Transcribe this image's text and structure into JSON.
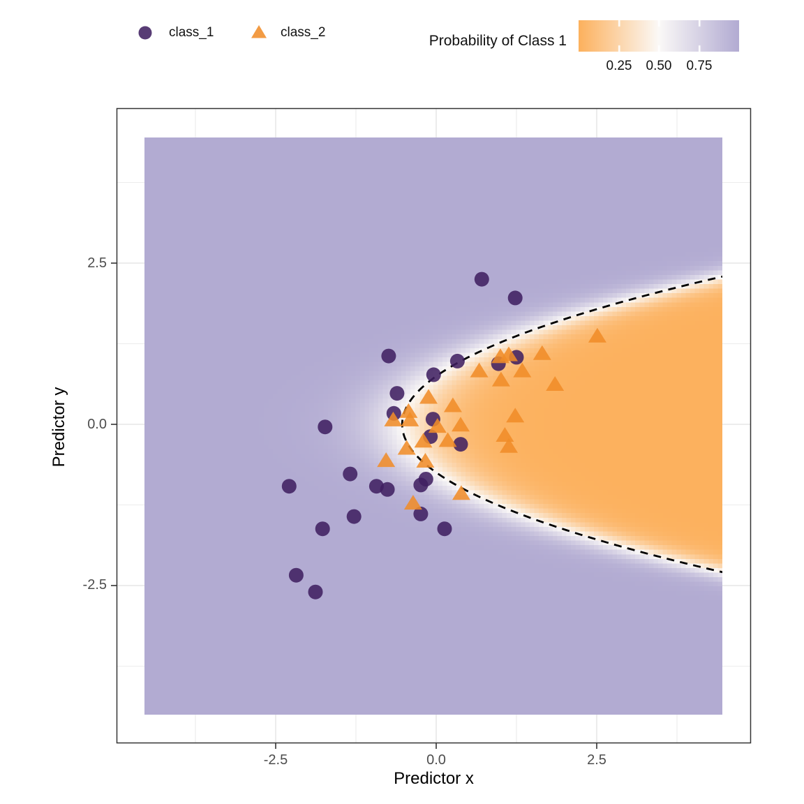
{
  "legend": {
    "classes": [
      {
        "label": "class_1",
        "marker": "circle",
        "color": "#3F1F60"
      },
      {
        "label": "class_2",
        "marker": "triangle",
        "color": "#F08C28"
      }
    ],
    "colorbar": {
      "title": "Probability of Class 1",
      "tick_labels": [
        "0.25",
        "0.50",
        "0.75"
      ],
      "tick_values": [
        0.25,
        0.5,
        0.75
      ],
      "range": [
        0,
        1
      ],
      "color_low": "#FCB15E",
      "color_mid": "#FBF9F7",
      "color_high": "#B2ABD2"
    }
  },
  "axes": {
    "x": {
      "title": "Predictor x",
      "tick_labels": [
        "-2.5",
        "0.0",
        "2.5"
      ],
      "tick_values": [
        -2.5,
        0.0,
        2.5
      ]
    },
    "y": {
      "title": "Predictor y",
      "tick_labels": [
        "2.5",
        "0.0",
        "-2.5"
      ],
      "tick_values": [
        2.5,
        0.0,
        -2.5
      ]
    }
  },
  "chart_data": {
    "type": "scatter",
    "xlabel": "Predictor x",
    "ylabel": "Predictor y",
    "xlim": [
      -4.98,
      4.9
    ],
    "ylim": [
      -4.94,
      4.9
    ],
    "x_ticks": [
      -2.5,
      0.0,
      2.5
    ],
    "y_ticks": [
      -2.5,
      0.0,
      2.5
    ],
    "minor_ticks": [
      -3.75,
      -1.25,
      1.25,
      3.75
    ],
    "grid": "major and minor light-gray gridlines on white, hidden under probability raster",
    "legend_position": "top",
    "series": [
      {
        "name": "class_1",
        "marker": "circle",
        "color": "#3F1F60",
        "points": [
          [
            0.71,
            2.25
          ],
          [
            1.23,
            1.96
          ],
          [
            -0.74,
            1.06
          ],
          [
            0.33,
            0.98
          ],
          [
            1.25,
            1.04
          ],
          [
            0.97,
            0.94
          ],
          [
            -0.04,
            0.77
          ],
          [
            -0.61,
            0.48
          ],
          [
            -0.66,
            0.17
          ],
          [
            -1.73,
            -0.04
          ],
          [
            -0.05,
            0.08
          ],
          [
            -0.09,
            -0.19
          ],
          [
            0.38,
            -0.31
          ],
          [
            -1.34,
            -0.77
          ],
          [
            -2.29,
            -0.96
          ],
          [
            -0.93,
            -0.96
          ],
          [
            -0.76,
            -1.01
          ],
          [
            -0.16,
            -0.85
          ],
          [
            -0.24,
            -0.94
          ],
          [
            -0.24,
            -1.39
          ],
          [
            0.13,
            -1.62
          ],
          [
            -1.28,
            -1.43
          ],
          [
            -1.77,
            -1.62
          ],
          [
            -2.18,
            -2.34
          ],
          [
            -1.88,
            -2.6
          ]
        ]
      },
      {
        "name": "class_2",
        "marker": "triangle",
        "color": "#F08C28",
        "points": [
          [
            2.51,
            1.36
          ],
          [
            1.65,
            1.09
          ],
          [
            1.13,
            1.07
          ],
          [
            1.0,
            1.04
          ],
          [
            1.34,
            0.82
          ],
          [
            0.67,
            0.82
          ],
          [
            1.01,
            0.68
          ],
          [
            1.85,
            0.61
          ],
          [
            1.23,
            0.12
          ],
          [
            1.07,
            -0.18
          ],
          [
            1.13,
            -0.35
          ],
          [
            -0.12,
            0.41
          ],
          [
            0.26,
            0.28
          ],
          [
            -0.43,
            0.19
          ],
          [
            -0.67,
            0.06
          ],
          [
            -0.41,
            0.06
          ],
          [
            0.02,
            -0.04
          ],
          [
            0.38,
            -0.02
          ],
          [
            -0.2,
            -0.27
          ],
          [
            0.18,
            -0.26
          ],
          [
            -0.46,
            -0.38
          ],
          [
            -0.78,
            -0.57
          ],
          [
            -0.17,
            -0.58
          ],
          [
            0.39,
            -1.08
          ],
          [
            -0.36,
            -1.23
          ]
        ]
      }
    ],
    "probability_surface": {
      "description": "P(class 1) raster fill, orange-white-purple diverging (PuOr-like) palette",
      "extent_x": [
        -4.54,
        4.46
      ],
      "extent_y": [
        -4.5,
        4.45
      ],
      "resolution": 126,
      "model": "p = sigmoid(k * ((a*y^2 + c) - x))",
      "a": 0.95,
      "c": -0.53,
      "k": 2.6,
      "color_low_orange": "#FCB15E",
      "color_mid_white": "#FBF9F7",
      "color_high_purple": "#B2ABD2"
    },
    "decision_boundary": {
      "equation": "x = 0.95*y^2 - 0.53",
      "level": 0.5,
      "line_style": "dashed",
      "color": "#000000"
    }
  }
}
